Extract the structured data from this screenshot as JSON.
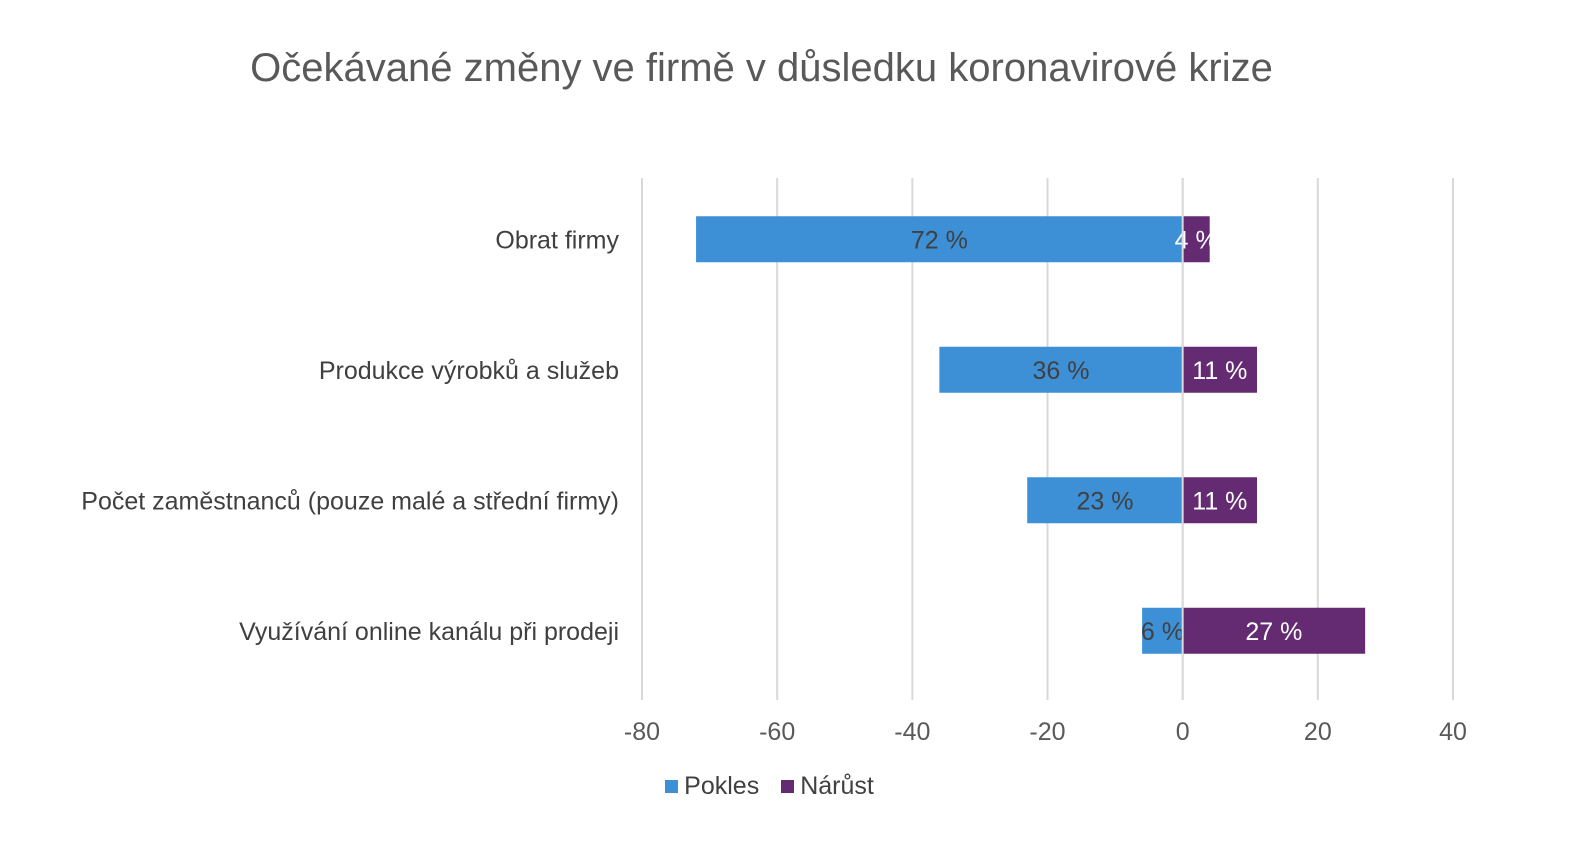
{
  "chart_data": {
    "type": "bar",
    "orientation": "horizontal",
    "stacked": true,
    "title": "Očekávané změny ve firmě v důsledku koronavirové krize",
    "categories": [
      "Obrat firmy",
      "Produkce výrobků a služeb",
      "Počet zaměstnanců (pouze malé a střední firmy)",
      "Využívání online kanálu při prodeji"
    ],
    "series": [
      {
        "name": "Pokles",
        "color": "#3d8fd6",
        "values": [
          -72,
          -36,
          -23,
          -6
        ],
        "labels": [
          "72 %",
          "36 %",
          "23 %",
          "6 %"
        ],
        "label_color": "#404040"
      },
      {
        "name": "Nárůst",
        "color": "#642a72",
        "values": [
          4,
          11,
          11,
          27
        ],
        "labels": [
          "4 %",
          "11 %",
          "11 %",
          "27 %"
        ],
        "label_color": "#ffffff"
      }
    ],
    "xlim": [
      -80,
      40
    ],
    "xticks": [
      -80,
      -60,
      -40,
      -20,
      0,
      20,
      40
    ],
    "xtick_labels": [
      "-80",
      "-60",
      "-40",
      "-20",
      "0",
      "20",
      "40"
    ],
    "grid": true,
    "legend": "bottom"
  }
}
